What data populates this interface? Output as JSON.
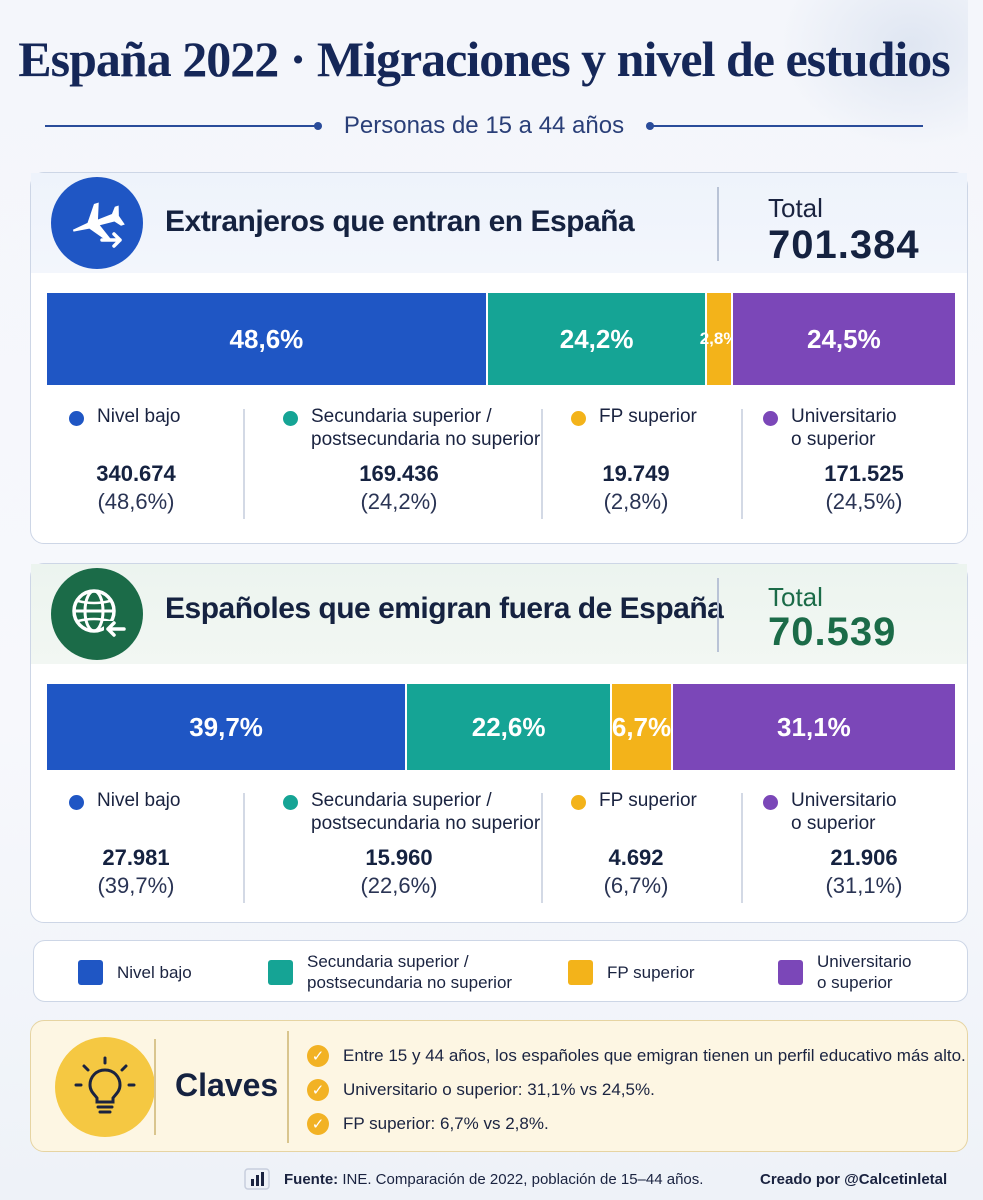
{
  "header": {
    "title": "España 2022 · Migraciones y nivel de estudios",
    "subtitle": "Personas de 15 a 44 años"
  },
  "colors": {
    "nivel_bajo": "#1f56c4",
    "secundaria": "#15a495",
    "fp": "#f3b31a",
    "universitario": "#7b47b8"
  },
  "chart_data": [
    {
      "type": "bar",
      "orientation": "horizontal-stacked-100",
      "title": "Extranjeros que entran en España",
      "total_label": "Total",
      "total_value": "701.384",
      "icon": "airplane-arrival-icon",
      "categories": [
        "Nivel bajo",
        "Secundaria superior / postsecundaria no superior",
        "FP superior",
        "Universitario o superior"
      ],
      "values": [
        48.6,
        24.2,
        2.8,
        24.5
      ],
      "bar_labels": [
        "48,6%",
        "24,2%",
        "2,8%",
        "24,5%"
      ],
      "legend": [
        {
          "line1": "Nivel bajo",
          "line2": "",
          "count": "340.674",
          "pct": "(48,6%)"
        },
        {
          "line1": "Secundaria superior /",
          "line2": "postsecundaria no superior",
          "count": "169.436",
          "pct": "(24,2%)"
        },
        {
          "line1": "FP superior",
          "line2": "",
          "count": "19.749",
          "pct": "(2,8%)"
        },
        {
          "line1": "Universitario",
          "line2": "o superior",
          "count": "171.525",
          "pct": "(24,5%)"
        }
      ]
    },
    {
      "type": "bar",
      "orientation": "horizontal-stacked-100",
      "title": "Españoles que emigran fuera de España",
      "total_label": "Total",
      "total_value": "70.539",
      "icon": "globe-departure-icon",
      "categories": [
        "Nivel bajo",
        "Secundaria superior / postsecundaria no superior",
        "FP superior",
        "Universitario o superior"
      ],
      "values": [
        39.7,
        22.6,
        6.7,
        31.1
      ],
      "bar_labels": [
        "39,7%",
        "22,6%",
        "6,7%",
        "31,1%"
      ],
      "legend": [
        {
          "line1": "Nivel bajo",
          "line2": "",
          "count": "27.981",
          "pct": "(39,7%)"
        },
        {
          "line1": "Secundaria superior /",
          "line2": "postsecundaria no superior",
          "count": "15.960",
          "pct": "(22,6%)"
        },
        {
          "line1": "FP superior",
          "line2": "",
          "count": "4.692",
          "pct": "(6,7%)"
        },
        {
          "line1": "Universitario",
          "line2": "o superior",
          "count": "21.906",
          "pct": "(31,1%)"
        }
      ]
    }
  ],
  "legend_box": [
    {
      "line1": "Nivel bajo",
      "line2": ""
    },
    {
      "line1": "Secundaria superior /",
      "line2": "postsecundaria no superior"
    },
    {
      "line1": "FP superior",
      "line2": ""
    },
    {
      "line1": "Universitario",
      "line2": "o superior"
    }
  ],
  "claves": {
    "title": "Claves",
    "icon": "lightbulb-icon",
    "items": [
      "Entre 15 y 44 años, los españoles que emigran tienen un perfil educativo más alto.",
      "Universitario o superior: 31,1% vs 24,5%.",
      "FP superior: 6,7% vs 2,8%."
    ]
  },
  "footer": {
    "source_label": "Fuente:",
    "source_text": " INE. Comparación de 2022, población de 15–44 años.",
    "credit": "Creado por @Calcetinletal"
  }
}
